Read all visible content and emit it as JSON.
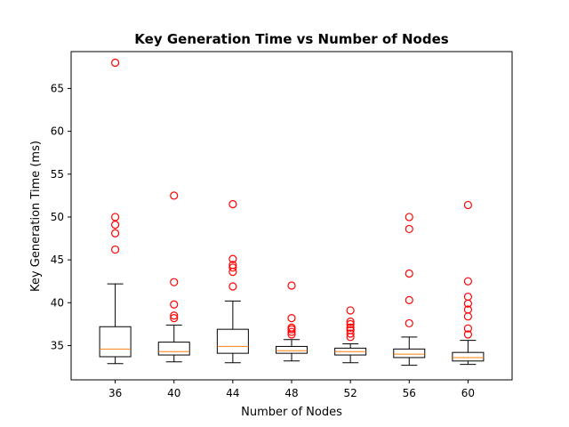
{
  "chart_data": {
    "type": "box",
    "title": "Key Generation Time vs Number of Nodes",
    "xlabel": "Number of Nodes",
    "ylabel": "Key Generation Time (ms)",
    "categories": [
      "36",
      "40",
      "44",
      "48",
      "52",
      "56",
      "60"
    ],
    "ylim": [
      31.0,
      69.3
    ],
    "yticks": [
      35,
      40,
      45,
      50,
      55,
      60,
      65
    ],
    "grid": false,
    "colors": {
      "box": "#000000",
      "median": "#ff7f0e",
      "outlier": "#ff0000"
    },
    "boxes": [
      {
        "category": "36",
        "whisker_low": 32.9,
        "q1": 33.7,
        "median": 34.6,
        "q3": 37.2,
        "whisker_high": 42.2,
        "outliers": [
          46.2,
          48.1,
          49.1,
          50.0,
          68.0
        ]
      },
      {
        "category": "40",
        "whisker_low": 33.1,
        "q1": 33.9,
        "median": 34.3,
        "q3": 35.4,
        "whisker_high": 37.4,
        "outliers": [
          38.2,
          38.5,
          39.8,
          42.4,
          52.5
        ]
      },
      {
        "category": "44",
        "whisker_low": 33.0,
        "q1": 34.1,
        "median": 34.9,
        "q3": 36.9,
        "whisker_high": 40.2,
        "outliers": [
          41.9,
          43.6,
          44.1,
          44.4,
          45.1,
          51.5
        ]
      },
      {
        "category": "48",
        "whisker_low": 33.2,
        "q1": 34.1,
        "median": 34.4,
        "q3": 34.9,
        "whisker_high": 35.7,
        "outliers": [
          36.3,
          36.6,
          36.9,
          37.1,
          38.2,
          42.0
        ]
      },
      {
        "category": "52",
        "whisker_low": 33.0,
        "q1": 33.9,
        "median": 34.3,
        "q3": 34.7,
        "whisker_high": 35.2,
        "outliers": [
          36.0,
          36.4,
          36.8,
          37.1,
          37.5,
          37.8,
          39.1
        ]
      },
      {
        "category": "56",
        "whisker_low": 32.7,
        "q1": 33.6,
        "median": 34.0,
        "q3": 34.6,
        "whisker_high": 36.0,
        "outliers": [
          37.6,
          40.3,
          43.4,
          48.6,
          50.0
        ]
      },
      {
        "category": "60",
        "whisker_low": 32.8,
        "q1": 33.2,
        "median": 33.6,
        "q3": 34.2,
        "whisker_high": 35.6,
        "outliers": [
          36.3,
          37.0,
          38.4,
          39.2,
          39.9,
          40.7,
          42.5,
          51.4
        ]
      }
    ]
  }
}
